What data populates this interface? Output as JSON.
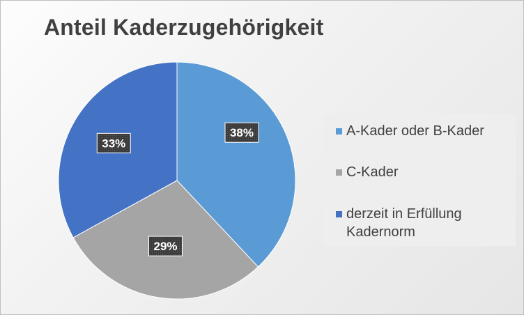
{
  "chart_data": {
    "type": "pie",
    "title": "Anteil Kaderzugehörigkeit",
    "legend_position": "right",
    "slices": [
      {
        "name": "A-Kader oder B-Kader",
        "value": 38,
        "label": "38%",
        "color": "#5b9bd5"
      },
      {
        "name": "C-Kader",
        "value": 29,
        "label": "29%",
        "color": "#a5a5a5"
      },
      {
        "name": "derzeit in Erfüllung Kadernorm",
        "value": 33,
        "label": "33%",
        "color": "#4472c4"
      }
    ]
  }
}
